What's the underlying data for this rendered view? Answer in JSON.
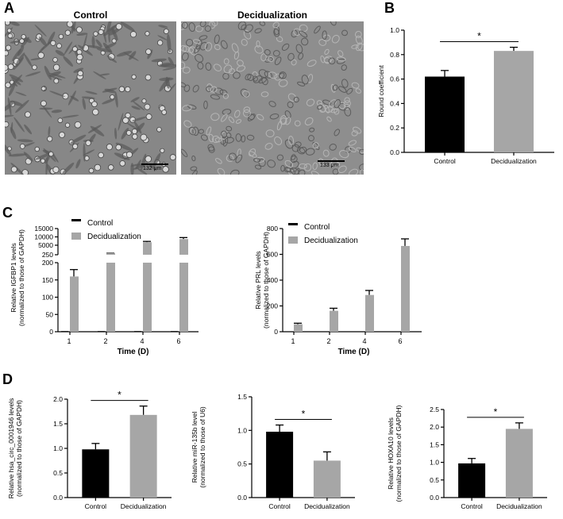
{
  "panels": {
    "A": "A",
    "B": "B",
    "C": "C",
    "D": "D"
  },
  "micrographs": [
    {
      "title": "Control",
      "scale_bar": "132 μm",
      "bg": "#8c8c8c"
    },
    {
      "title": "Decidualization",
      "scale_bar": "133 μm",
      "bg": "#969696"
    }
  ],
  "colors": {
    "control": "#000000",
    "decidualization": "#a6a6a6"
  },
  "chart_data": [
    {
      "id": "B",
      "type": "bar",
      "categories": [
        "Control",
        "Decidualization"
      ],
      "values": [
        0.62,
        0.83
      ],
      "errors": [
        0.05,
        0.03
      ],
      "ylabel": "Round coefficient",
      "xlabel": "",
      "ylim": [
        0,
        1.0
      ],
      "yticks": [
        "0.0",
        "0.2",
        "0.4",
        "0.6",
        "0.8",
        "1.0"
      ],
      "significance": "*"
    },
    {
      "id": "C1",
      "type": "bar",
      "categories": [
        "1",
        "2",
        "4",
        "6"
      ],
      "series": [
        {
          "name": "Control",
          "values": [
            1,
            1,
            1,
            1
          ]
        },
        {
          "name": "Decidualization",
          "values": [
            160,
            1000,
            6800,
            8700
          ],
          "errors": [
            20,
            0,
            500,
            900
          ]
        }
      ],
      "ylabel": "Relative IGFBP1 levels",
      "ylabel2": "(normalized to those of GAPDH)",
      "xlabel": "Time (D)",
      "yticks_lower": [
        "0",
        "50",
        "100",
        "150",
        "200"
      ],
      "yticks_upper": [
        "250",
        "5000",
        "10000",
        "15000"
      ],
      "legend": "top-left"
    },
    {
      "id": "C2",
      "type": "bar",
      "categories": [
        "1",
        "2",
        "4",
        "6"
      ],
      "series": [
        {
          "name": "Control",
          "values": [
            1,
            1,
            1,
            1
          ]
        },
        {
          "name": "Decidualization",
          "values": [
            58,
            162,
            285,
            665
          ],
          "errors": [
            8,
            20,
            35,
            55
          ]
        }
      ],
      "ylabel": "Relative PRL levels",
      "ylabel2": "(normalized to those of GAPDH)",
      "xlabel": "Time (D)",
      "ylim": [
        0,
        800
      ],
      "yticks": [
        "0",
        "200",
        "400",
        "600",
        "800"
      ],
      "legend": "top-left"
    },
    {
      "id": "D1",
      "type": "bar",
      "categories": [
        "Control",
        "Decidualization"
      ],
      "values": [
        0.98,
        1.68
      ],
      "errors": [
        0.12,
        0.18
      ],
      "ylabel": "Relative hsa_circ_0001946 levels",
      "ylabel2": "(normalized to those of GAPDH)",
      "ylim": [
        0,
        2.0
      ],
      "yticks": [
        "0.0",
        "0.5",
        "1.0",
        "1.5",
        "2.0"
      ],
      "significance": "*"
    },
    {
      "id": "D2",
      "type": "bar",
      "categories": [
        "Control",
        "Decidualization"
      ],
      "values": [
        0.98,
        0.55
      ],
      "errors": [
        0.1,
        0.13
      ],
      "ylabel": "Relative miR-135b level",
      "ylabel2": "(normalized to those of U6)",
      "ylim": [
        0,
        1.5
      ],
      "yticks": [
        "0.0",
        "0.5",
        "1.0",
        "1.5"
      ],
      "significance": "*"
    },
    {
      "id": "D3",
      "type": "bar",
      "categories": [
        "Control",
        "Decidualization"
      ],
      "values": [
        0.97,
        1.95
      ],
      "errors": [
        0.14,
        0.17
      ],
      "ylabel": "Relative HOXA10 levels",
      "ylabel2": "(normalized to those of GAPDH)",
      "ylim": [
        0,
        2.5
      ],
      "yticks": [
        "0.0",
        "0.5",
        "1.0",
        "1.5",
        "2.0",
        "2.5"
      ],
      "significance": "*"
    }
  ]
}
